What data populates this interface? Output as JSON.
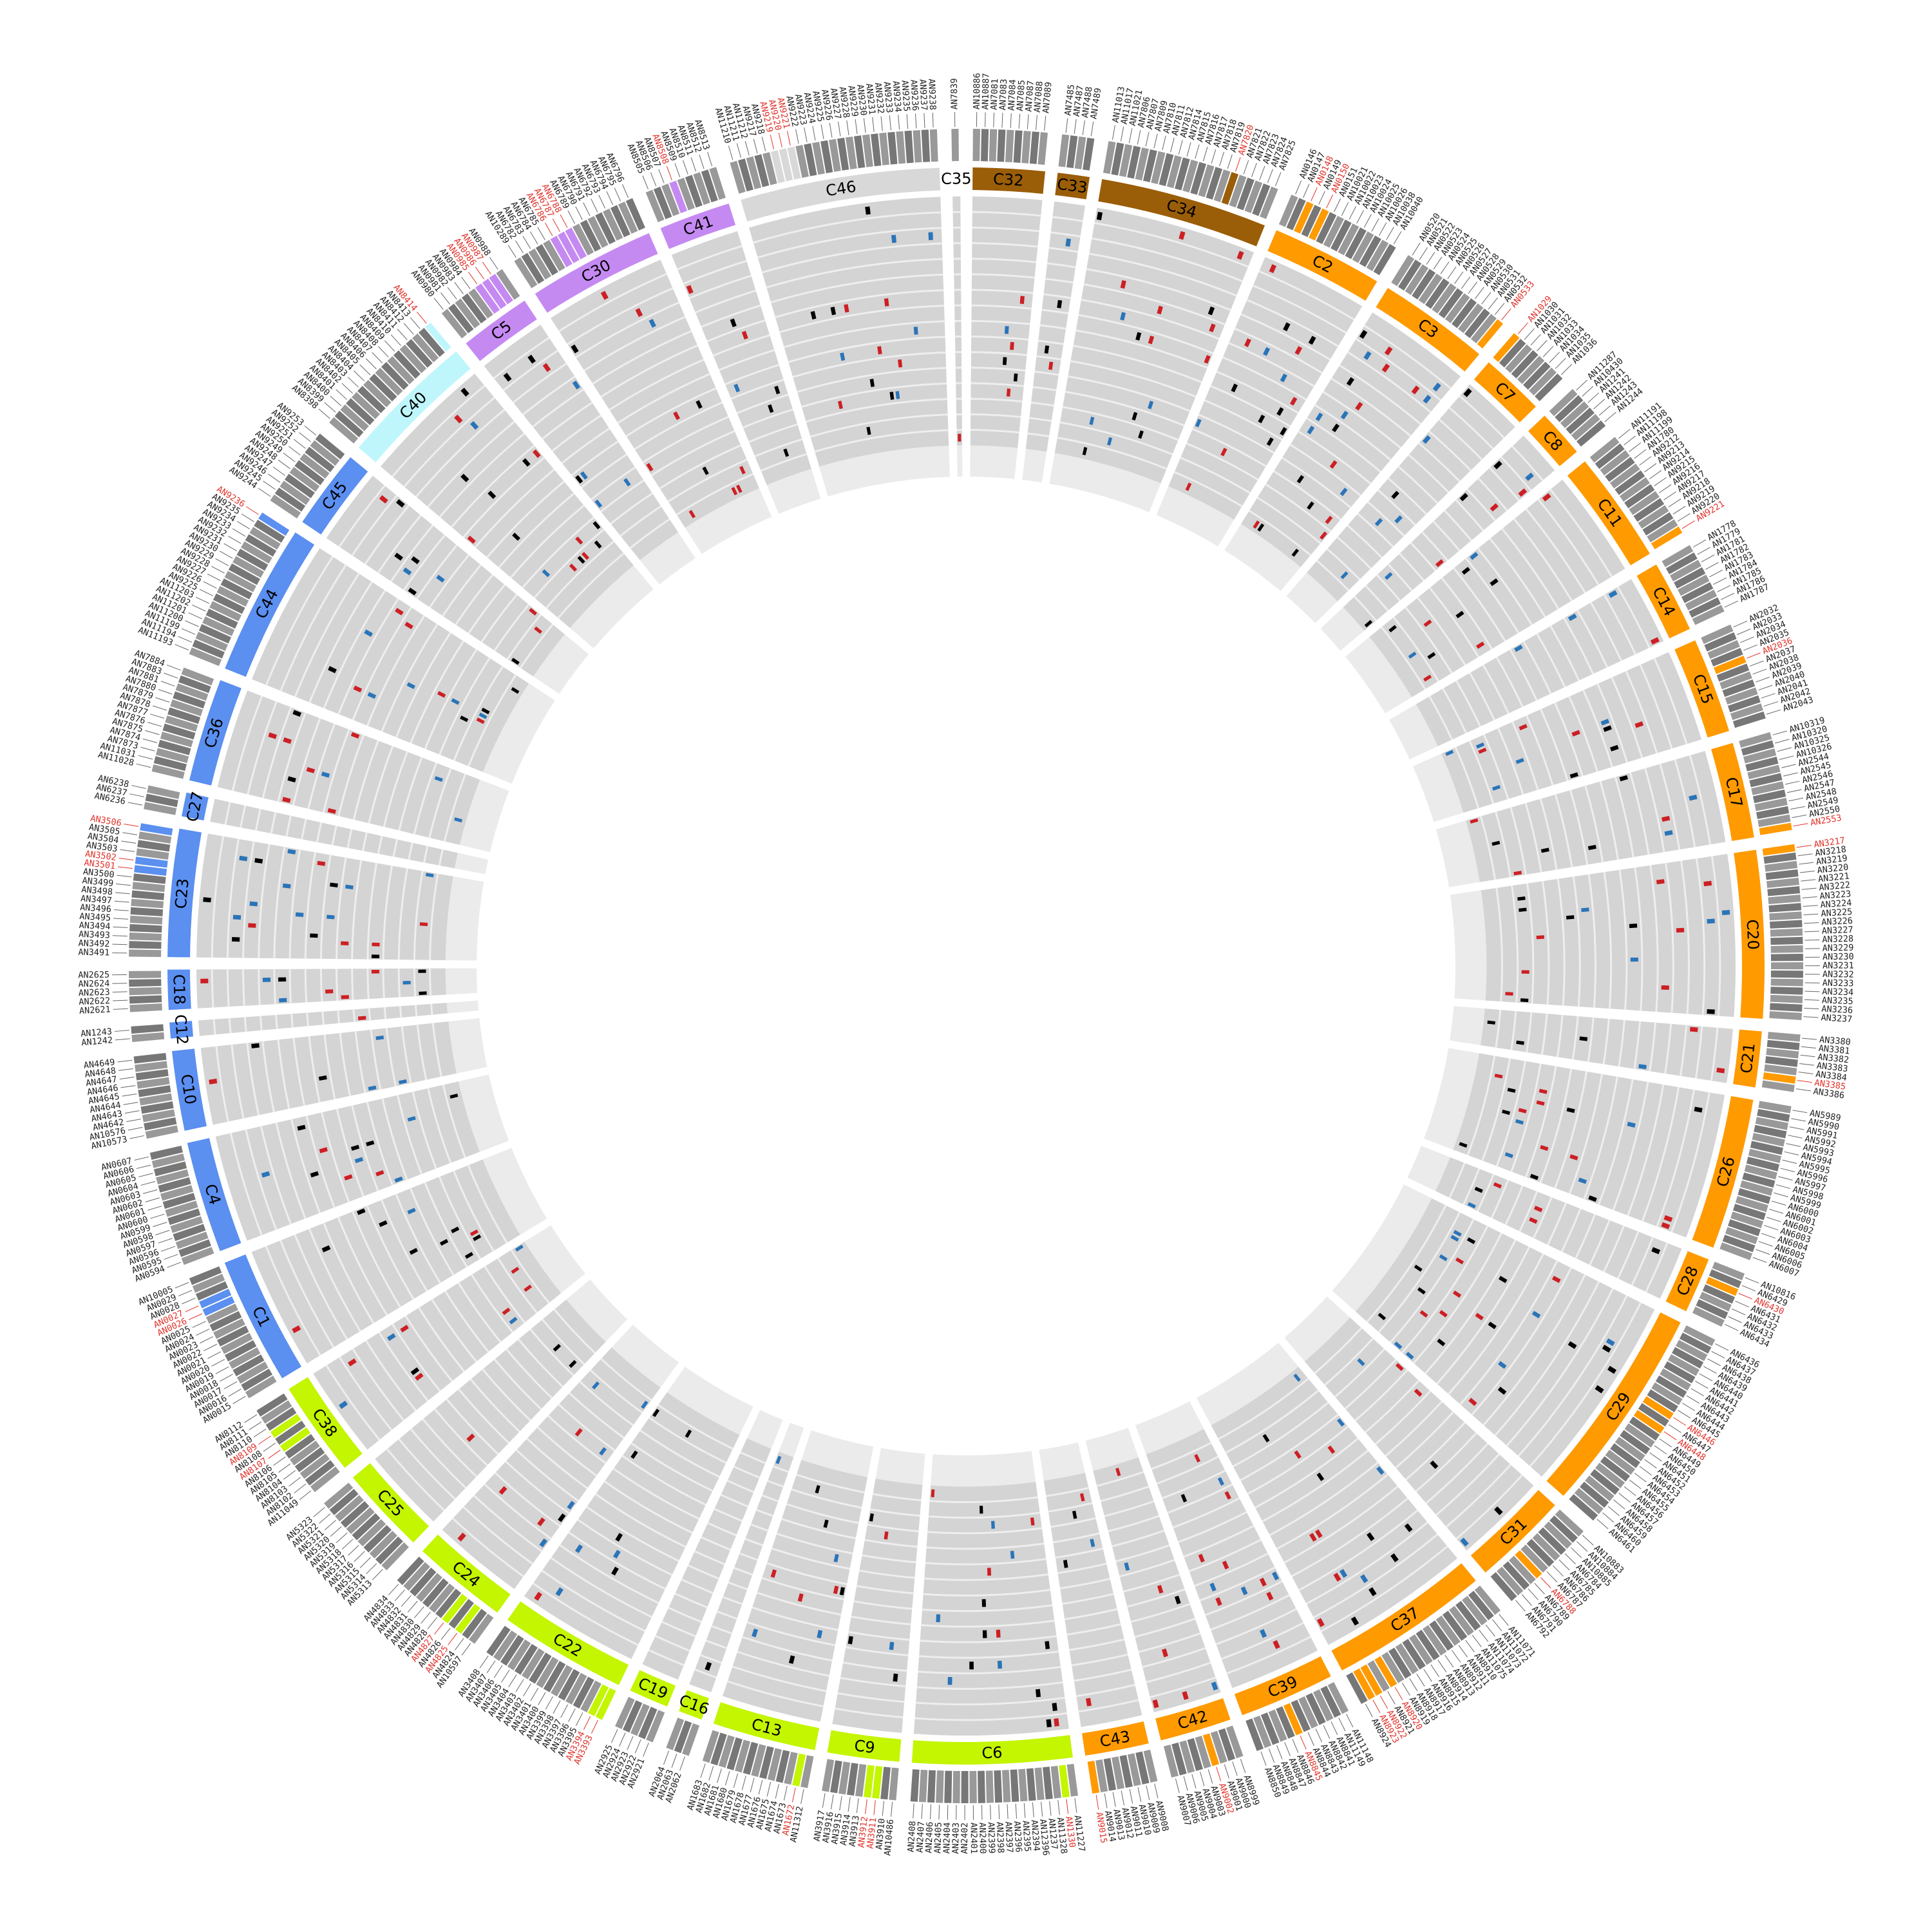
{
  "diagram": {
    "colors": {
      "hit_red": "#cc1f24",
      "hit_blue": "#2a74b8",
      "hit_black": "#000000",
      "track_bg": "#d4d4d4",
      "inner_band": "#ebebeb",
      "highlight_label": "#e0332b",
      "group_blue": "#5b8ff0",
      "group_cyan": "#bff6fb",
      "group_purple": "#c58af2",
      "group_brown": "#9a5d08",
      "group_orange": "#ff9a00",
      "group_lime": "#c4f501"
    },
    "segments": [
      {
        "id": "C35",
        "color": "#ffffff",
        "genes": [
          "AN7839"
        ],
        "highlight": []
      },
      {
        "id": "C32",
        "color": "#9a5d08",
        "genes": [
          "AN10886",
          "AN10887",
          "AN7081",
          "AN7083",
          "AN7084",
          "AN7085",
          "AN7087",
          "AN7088",
          "AN7089"
        ],
        "highlight": []
      },
      {
        "id": "C33",
        "color": "#9a5d08",
        "genes": [
          "AN7485",
          "AN7487",
          "AN7488",
          "AN7489"
        ],
        "highlight": []
      },
      {
        "id": "C34",
        "color": "#9a5d08",
        "genes": [
          "AN11013",
          "AN11017",
          "AN11021",
          "AN7806",
          "AN7807",
          "AN7809",
          "AN7810",
          "AN7811",
          "AN7812",
          "AN7814",
          "AN7815",
          "AN7816",
          "AN7817",
          "AN7818",
          "AN7819",
          "AN7820",
          "AN7821",
          "AN7822",
          "AN7823",
          "AN7824",
          "AN7825"
        ],
        "highlight": [
          "AN7820"
        ]
      },
      {
        "id": "C2",
        "color": "#ff9a00",
        "genes": [
          "AN0146",
          "AN0147",
          "AN0148",
          "AN0149",
          "AN0150",
          "AN0151",
          "AN10021",
          "AN10022",
          "AN10023",
          "AN10024",
          "AN10025",
          "AN10026",
          "AN10038",
          "AN10040"
        ],
        "highlight": [
          "AN0148",
          "AN0150"
        ]
      },
      {
        "id": "C3",
        "color": "#ff9a00",
        "genes": [
          "AN0520",
          "AN0521",
          "AN0522",
          "AN0523",
          "AN0524",
          "AN0525",
          "AN0526",
          "AN0527",
          "AN0528",
          "AN0529",
          "AN0530",
          "AN0531",
          "AN0532",
          "AN0533"
        ],
        "highlight": [
          "AN0533"
        ]
      },
      {
        "id": "C7",
        "color": "#ff9a00",
        "genes": [
          "AN1029",
          "AN1030",
          "AN1031",
          "AN1032",
          "AN1033",
          "AN1034",
          "AN1035",
          "AN1036"
        ],
        "highlight": [
          "AN1029"
        ]
      },
      {
        "id": "C8",
        "color": "#ff9a00",
        "genes": [
          "AN11287",
          "AN10430",
          "AN1241",
          "AN1242",
          "AN1243",
          "AN1244"
        ],
        "highlight": []
      },
      {
        "id": "C11",
        "color": "#ff9a00",
        "genes": [
          "AN11191",
          "AN11198",
          "AN11199",
          "AN1780",
          "AN9212",
          "AN9213",
          "AN9214",
          "AN9215",
          "AN9216",
          "AN9217",
          "AN9218",
          "AN9219",
          "AN9220",
          "AN9221"
        ],
        "highlight": [
          "AN9221"
        ]
      },
      {
        "id": "C14",
        "color": "#ff9a00",
        "genes": [
          "AN1778",
          "AN1779",
          "AN1781",
          "AN1782",
          "AN1783",
          "AN1784",
          "AN1785",
          "AN1786",
          "AN1787"
        ],
        "highlight": []
      },
      {
        "id": "C15",
        "color": "#ff9a00",
        "genes": [
          "AN2032",
          "AN2033",
          "AN2034",
          "AN2035",
          "AN2036",
          "AN2037",
          "AN2038",
          "AN2039",
          "AN2040",
          "AN2041",
          "AN2042",
          "AN2043"
        ],
        "highlight": [
          "AN2036"
        ]
      },
      {
        "id": "C17",
        "color": "#ff9a00",
        "genes": [
          "AN10319",
          "AN10320",
          "AN10325",
          "AN10326",
          "AN2544",
          "AN2545",
          "AN2546",
          "AN2547",
          "AN2548",
          "AN2549",
          "AN2550",
          "AN2553"
        ],
        "highlight": [
          "AN2553"
        ]
      },
      {
        "id": "C20",
        "color": "#ff9a00",
        "genes": [
          "AN3217",
          "AN3218",
          "AN3219",
          "AN3220",
          "AN3221",
          "AN3222",
          "AN3223",
          "AN3224",
          "AN3225",
          "AN3226",
          "AN3227",
          "AN3228",
          "AN3229",
          "AN3230",
          "AN3231",
          "AN3232",
          "AN3233",
          "AN3234",
          "AN3235",
          "AN3236",
          "AN3237"
        ],
        "highlight": [
          "AN3217"
        ]
      },
      {
        "id": "C21",
        "color": "#ff9a00",
        "genes": [
          "AN3380",
          "AN3381",
          "AN3382",
          "AN3383",
          "AN3384",
          "AN3385",
          "AN3386"
        ],
        "highlight": [
          "AN3385"
        ]
      },
      {
        "id": "C26",
        "color": "#ff9a00",
        "genes": [
          "AN5989",
          "AN5990",
          "AN5991",
          "AN5992",
          "AN5993",
          "AN5994",
          "AN5995",
          "AN5996",
          "AN5997",
          "AN5998",
          "AN5999",
          "AN6000",
          "AN6001",
          "AN6002",
          "AN6003",
          "AN6004",
          "AN6005",
          "AN6006",
          "AN6007"
        ],
        "highlight": []
      },
      {
        "id": "C28",
        "color": "#ff9a00",
        "genes": [
          "AN10816",
          "AN6429",
          "AN6430",
          "AN6431",
          "AN6432",
          "AN6433",
          "AN6434"
        ],
        "highlight": [
          "AN6430"
        ]
      },
      {
        "id": "C29",
        "color": "#ff9a00",
        "genes": [
          "AN6436",
          "AN6437",
          "AN6438",
          "AN6439",
          "AN6440",
          "AN6441",
          "AN6442",
          "AN6443",
          "AN6444",
          "AN6445",
          "AN6446",
          "AN6447",
          "AN6448",
          "AN6449",
          "AN6450",
          "AN6451",
          "AN6452",
          "AN6453",
          "AN6454",
          "AN6455",
          "AN6456",
          "AN6457",
          "AN6458",
          "AN6459",
          "AN6460",
          "AN6461"
        ],
        "highlight": [
          "AN6446",
          "AN6448"
        ]
      },
      {
        "id": "C31",
        "color": "#ff9a00",
        "genes": [
          "AN10883",
          "AN10884",
          "AN10885",
          "AN6784",
          "AN6785",
          "AN6786",
          "AN6787",
          "AN6788",
          "AN6789",
          "AN6790",
          "AN6791",
          "AN6792"
        ],
        "highlight": [
          "AN6788"
        ]
      },
      {
        "id": "C37",
        "color": "#ff9a00",
        "genes": [
          "AN11071",
          "AN11072",
          "AN11073",
          "AN11074",
          "AN11075",
          "AN8910",
          "AN8911",
          "AN8912",
          "AN8913",
          "AN8914",
          "AN8915",
          "AN8916",
          "AN8917",
          "AN8918",
          "AN8919",
          "AN8920",
          "AN8921",
          "AN8922",
          "AN8923",
          "AN8924"
        ],
        "highlight": [
          "AN8920",
          "AN8922",
          "AN8923"
        ]
      },
      {
        "id": "C39",
        "color": "#ff9a00",
        "genes": [
          "AN11148",
          "AN11149",
          "AN8841",
          "AN8842",
          "AN8843",
          "AN8844",
          "AN8845",
          "AN8846",
          "AN8847",
          "AN8848",
          "AN8849",
          "AN8850"
        ],
        "highlight": [
          "AN8845"
        ]
      },
      {
        "id": "C42",
        "color": "#ff9a00",
        "genes": [
          "AN8999",
          "AN9000",
          "AN9001",
          "AN9002",
          "AN9003",
          "AN9004",
          "AN9005",
          "AN9006",
          "AN9007"
        ],
        "highlight": [
          "AN9002"
        ]
      },
      {
        "id": "C43",
        "color": "#ff9a00",
        "genes": [
          "AN9008",
          "AN9009",
          "AN9010",
          "AN9011",
          "AN9012",
          "AN9013",
          "AN9014",
          "AN9015"
        ],
        "highlight": [
          "AN9015"
        ]
      },
      {
        "id": "C6",
        "color": "#c4f501",
        "genes": [
          "AN11227",
          "AN1330",
          "AN11328",
          "AN1237",
          "AN12396",
          "AN2394",
          "AN2395",
          "AN2396",
          "AN2397",
          "AN2398",
          "AN2399",
          "AN2400",
          "AN2401",
          "AN2402",
          "AN2403",
          "AN2404",
          "AN2405",
          "AN2406",
          "AN2407",
          "AN2408"
        ],
        "highlight": [
          "AN1330"
        ]
      },
      {
        "id": "C9",
        "color": "#c4f501",
        "genes": [
          "AN10486",
          "AN3910",
          "AN3911",
          "AN3912",
          "AN3913",
          "AN3914",
          "AN3915",
          "AN3916",
          "AN3917"
        ],
        "highlight": [
          "AN3911",
          "AN3912"
        ]
      },
      {
        "id": "C13",
        "color": "#c4f501",
        "genes": [
          "AN11312",
          "AN1672",
          "AN1673",
          "AN1674",
          "AN1675",
          "AN1676",
          "AN1677",
          "AN1678",
          "AN1679",
          "AN1680",
          "AN1681",
          "AN1682",
          "AN1683"
        ],
        "highlight": [
          "AN1672"
        ]
      },
      {
        "id": "C16",
        "color": "#c4f501",
        "genes": [
          "AN2062",
          "AN2063",
          "AN2064"
        ],
        "highlight": []
      },
      {
        "id": "C19",
        "color": "#c4f501",
        "genes": [
          "AN2921",
          "AN2922",
          "AN2923",
          "AN2924",
          "AN2925"
        ],
        "highlight": []
      },
      {
        "id": "C22",
        "color": "#c4f501",
        "genes": [
          "AN3393",
          "AN3394",
          "AN3395",
          "AN3396",
          "AN3397",
          "AN3398",
          "AN3399",
          "AN3400",
          "AN3401",
          "AN3402",
          "AN3403",
          "AN3404",
          "AN3405",
          "AN3406",
          "AN3407",
          "AN3408"
        ],
        "highlight": [
          "AN3393",
          "AN3394"
        ]
      },
      {
        "id": "C24",
        "color": "#c4f501",
        "genes": [
          "AN10597",
          "AN4824",
          "AN4825",
          "AN4826",
          "AN4827",
          "AN4828",
          "AN4829",
          "AN4830",
          "AN4831",
          "AN4832",
          "AN4833",
          "AN4834"
        ],
        "highlight": [
          "AN4825",
          "AN4827"
        ]
      },
      {
        "id": "C25",
        "color": "#c4f501",
        "genes": [
          "AN5313",
          "AN5314",
          "AN5315",
          "AN5316",
          "AN5317",
          "AN5318",
          "AN5319",
          "AN5320",
          "AN5321",
          "AN5322",
          "AN5323"
        ],
        "highlight": []
      },
      {
        "id": "C38",
        "color": "#c4f501",
        "genes": [
          "AN11049",
          "AN8102",
          "AN8103",
          "AN8104",
          "AN8105",
          "AN8106",
          "AN8107",
          "AN8108",
          "AN8109",
          "AN8110",
          "AN8111",
          "AN8112"
        ],
        "highlight": [
          "AN8107",
          "AN8109"
        ]
      },
      {
        "id": "C1",
        "color": "#5b8ff0",
        "genes": [
          "AN0015",
          "AN0016",
          "AN0017",
          "AN0018",
          "AN0019",
          "AN0020",
          "AN0021",
          "AN0022",
          "AN0023",
          "AN0024",
          "AN0025",
          "AN0026",
          "AN0027",
          "AN0028",
          "AN0029",
          "AN10005"
        ],
        "highlight": [
          "AN0026",
          "AN0027"
        ]
      },
      {
        "id": "C4",
        "color": "#5b8ff0",
        "genes": [
          "AN0594",
          "AN0595",
          "AN0596",
          "AN0597",
          "AN0598",
          "AN0599",
          "AN0600",
          "AN0601",
          "AN0602",
          "AN0603",
          "AN0604",
          "AN0605",
          "AN0606",
          "AN0607"
        ],
        "highlight": []
      },
      {
        "id": "C10",
        "color": "#5b8ff0",
        "genes": [
          "AN10573",
          "AN10576",
          "AN4642",
          "AN4643",
          "AN4644",
          "AN4645",
          "AN4646",
          "AN4647",
          "AN4648",
          "AN4649"
        ],
        "highlight": []
      },
      {
        "id": "C12",
        "color": "#5b8ff0",
        "genes": [
          "AN1242",
          "AN1243"
        ],
        "highlight": []
      },
      {
        "id": "C18",
        "color": "#5b8ff0",
        "genes": [
          "AN2621",
          "AN2622",
          "AN2623",
          "AN2624",
          "AN2625"
        ],
        "highlight": []
      },
      {
        "id": "C23",
        "color": "#5b8ff0",
        "genes": [
          "AN3491",
          "AN3492",
          "AN3493",
          "AN3494",
          "AN3495",
          "AN3496",
          "AN3497",
          "AN3498",
          "AN3499",
          "AN3500",
          "AN3501",
          "AN3502",
          "AN3503",
          "AN3504",
          "AN3505",
          "AN3506"
        ],
        "highlight": [
          "AN3501",
          "AN3502",
          "AN3506"
        ]
      },
      {
        "id": "C27",
        "color": "#5b8ff0",
        "genes": [
          "AN6236",
          "AN6237",
          "AN6238"
        ],
        "highlight": []
      },
      {
        "id": "C36",
        "color": "#5b8ff0",
        "genes": [
          "AN11028",
          "AN11031",
          "AN7873",
          "AN7874",
          "AN7875",
          "AN7876",
          "AN7877",
          "AN7878",
          "AN7879",
          "AN7880",
          "AN7881",
          "AN7883",
          "AN7884"
        ],
        "highlight": []
      },
      {
        "id": "C44",
        "color": "#5b8ff0",
        "genes": [
          "AN11193",
          "AN11194",
          "AN11199",
          "AN11200",
          "AN11201",
          "AN11202",
          "AN11203",
          "AN9225",
          "AN9226",
          "AN9227",
          "AN9228",
          "AN9229",
          "AN9230",
          "AN9231",
          "AN9232",
          "AN9233",
          "AN9234",
          "AN9235",
          "AN9236"
        ],
        "highlight": [
          "AN9236"
        ]
      },
      {
        "id": "C45",
        "color": "#5b8ff0",
        "genes": [
          "AN9244",
          "AN9245",
          "AN9246",
          "AN9247",
          "AN9248",
          "AN9249",
          "AN9250",
          "AN9251",
          "AN9252",
          "AN9253"
        ],
        "highlight": []
      },
      {
        "id": "C40",
        "color": "#bff6fb",
        "genes": [
          "AN8398",
          "AN8399",
          "AN8400",
          "AN8401",
          "AN8402",
          "AN8403",
          "AN8404",
          "AN8405",
          "AN8406",
          "AN8407",
          "AN8408",
          "AN8409",
          "AN8410",
          "AN8411",
          "AN8412",
          "AN8413",
          "AN8414"
        ],
        "highlight": [
          "AN8414"
        ]
      },
      {
        "id": "C5",
        "color": "#c58af2",
        "genes": [
          "AN0980",
          "AN0981",
          "AN0982",
          "AN0983",
          "AN0984",
          "AN0985",
          "AN0986",
          "AN0987",
          "AN0988"
        ],
        "highlight": [
          "AN0985",
          "AN0986",
          "AN0987"
        ]
      },
      {
        "id": "C30",
        "color": "#c58af2",
        "genes": [
          "AN10289",
          "AN6782",
          "AN6783",
          "AN6784",
          "AN6785",
          "AN6786",
          "AN6787",
          "AN6788",
          "AN6789",
          "AN6790",
          "AN6791",
          "AN6792",
          "AN6793",
          "AN6794",
          "AN6795",
          "AN6796"
        ],
        "highlight": [
          "AN6786",
          "AN6787",
          "AN6788"
        ]
      },
      {
        "id": "C41",
        "color": "#c58af2",
        "genes": [
          "AN8505",
          "AN8506",
          "AN8507",
          "AN8508",
          "AN8509",
          "AN8510",
          "AN8511",
          "AN8512",
          "AN8513"
        ],
        "highlight": [
          "AN8508"
        ]
      },
      {
        "id": "C46",
        "color": "#d8d8d8",
        "genes": [
          "AN11210",
          "AN11211",
          "AN11212",
          "AN9217",
          "AN9218",
          "AN9219",
          "AN9220",
          "AN9221",
          "AN9222",
          "AN9223",
          "AN9224",
          "AN9225",
          "AN9226",
          "AN9227",
          "AN9228",
          "AN9229",
          "AN9230",
          "AN9231",
          "AN9232",
          "AN9233",
          "AN9234",
          "AN9235",
          "AN9236",
          "AN9237",
          "AN9238"
        ],
        "highlight": [
          "AN9219",
          "AN9220",
          "AN9221"
        ]
      }
    ]
  }
}
